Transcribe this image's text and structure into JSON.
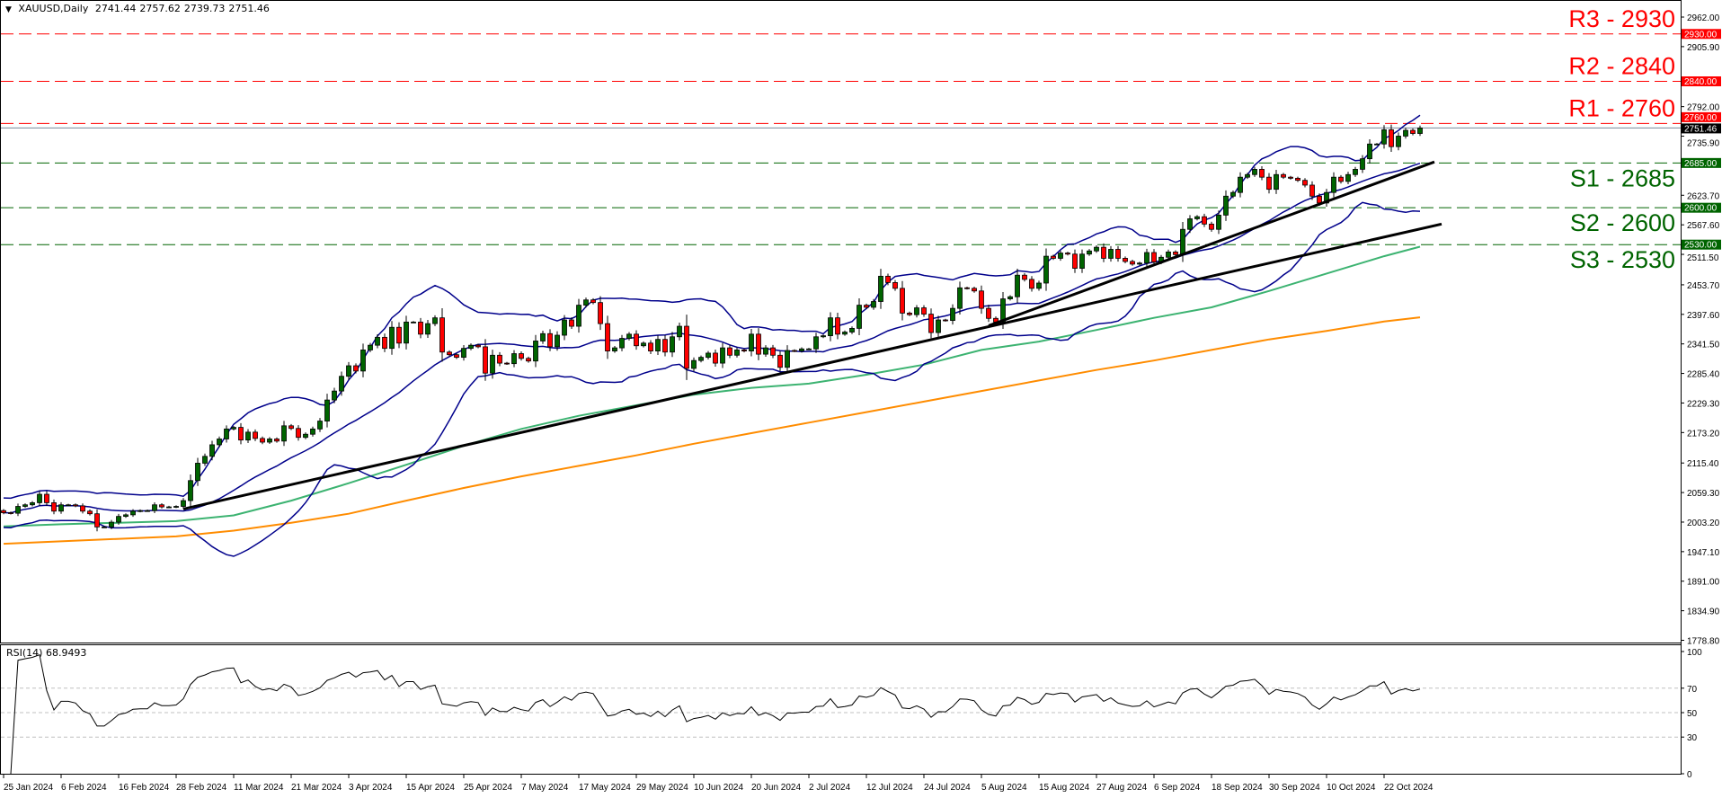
{
  "header": {
    "symbol": "XAUUSD,Daily",
    "open": "2741.44",
    "high": "2757.62",
    "low": "2739.73",
    "close": "2751.46",
    "menu_icon": "triangle-down-icon"
  },
  "rsi_panel": {
    "label": "RSI(14) 68.9493",
    "ticks": [
      "100",
      "70",
      "50",
      "30",
      "0"
    ]
  },
  "colors": {
    "up_candle": "#006400",
    "down_candle": "#ff0000",
    "bollinger": "#00008b",
    "ma_green": "#3cb371",
    "ma_orange": "#ff8c00",
    "trendline": "#000000",
    "resistance": "#ff0000",
    "support": "#006400",
    "price_line": "#778899"
  },
  "chart_data": {
    "type": "candlestick",
    "symbol": "XAUUSD",
    "timeframe": "Daily",
    "ylim": [
      1778.8,
      2962.0
    ],
    "y_ticks": [
      "2962.00",
      "2905.90",
      "2792.00",
      "2735.90",
      "2623.70",
      "2567.60",
      "2511.50",
      "2453.70",
      "2397.60",
      "2341.50",
      "2285.40",
      "2229.30",
      "2173.20",
      "2115.40",
      "2059.30",
      "2003.20",
      "1947.10",
      "1891.00",
      "1834.90",
      "1778.80"
    ],
    "x_ticks": [
      "25 Jan 2024",
      "6 Feb 2024",
      "16 Feb 2024",
      "28 Feb 2024",
      "11 Mar 2024",
      "21 Mar 2024",
      "3 Apr 2024",
      "15 Apr 2024",
      "25 Apr 2024",
      "7 May 2024",
      "17 May 2024",
      "29 May 2024",
      "10 Jun 2024",
      "20 Jun 2024",
      "2 Jul 2024",
      "12 Jul 2024",
      "24 Jul 2024",
      "5 Aug 2024",
      "15 Aug 2024",
      "27 Aug 2024",
      "6 Sep 2024",
      "18 Sep 2024",
      "30 Sep 2024",
      "10 Oct 2024",
      "22 Oct 2024"
    ],
    "close": [
      2021,
      2020,
      2033,
      2036,
      2040,
      2056,
      2040,
      2024,
      2036,
      2036,
      2034,
      2024,
      2019,
      1994,
      1994,
      2003,
      2014,
      2017,
      2024,
      2025,
      2025,
      2036,
      2032,
      2032,
      2033,
      2044,
      2082,
      2115,
      2128,
      2150,
      2161,
      2180,
      2183,
      2159,
      2174,
      2162,
      2155,
      2161,
      2157,
      2186,
      2181,
      2164,
      2170,
      2180,
      2195,
      2235,
      2252,
      2280,
      2300,
      2290,
      2330,
      2339,
      2354,
      2333,
      2373,
      2343,
      2383,
      2383,
      2360,
      2380,
      2391,
      2326,
      2321,
      2316,
      2333,
      2339,
      2336,
      2286,
      2320,
      2305,
      2304,
      2323,
      2314,
      2309,
      2347,
      2361,
      2336,
      2358,
      2387,
      2375,
      2415,
      2425,
      2420,
      2380,
      2328,
      2334,
      2352,
      2360,
      2338,
      2343,
      2328,
      2350,
      2326,
      2355,
      2375,
      2295,
      2310,
      2316,
      2324,
      2305,
      2334,
      2320,
      2330,
      2328,
      2360,
      2322,
      2334,
      2320,
      2297,
      2329,
      2328,
      2332,
      2332,
      2355,
      2357,
      2391,
      2360,
      2364,
      2371,
      2415,
      2411,
      2422,
      2470,
      2458,
      2447,
      2400,
      2397,
      2410,
      2398,
      2363,
      2387,
      2386,
      2409,
      2448,
      2447,
      2442,
      2409,
      2390,
      2383,
      2427,
      2431,
      2472,
      2464,
      2447,
      2457,
      2508,
      2504,
      2514,
      2512,
      2485,
      2512,
      2518,
      2525,
      2504,
      2521,
      2504,
      2498,
      2493,
      2495,
      2515,
      2497,
      2506,
      2516,
      2511,
      2559,
      2579,
      2583,
      2569,
      2559,
      2586,
      2622,
      2629,
      2658,
      2663,
      2673,
      2658,
      2635,
      2663,
      2658,
      2656,
      2652,
      2643,
      2622,
      2609,
      2629,
      2658,
      2650,
      2663,
      2673,
      2693,
      2721,
      2721,
      2748,
      2716,
      2736,
      2747,
      2741,
      2751.46
    ],
    "current_price": "2751.46",
    "levels": [
      {
        "label": "R3 - 2930",
        "price": 2930,
        "tag": "2930.00",
        "type": "resistance"
      },
      {
        "label": "R2 - 2840",
        "price": 2840,
        "tag": "2840.00",
        "type": "resistance"
      },
      {
        "label": "R1 - 2760",
        "price": 2760,
        "tag": "2760.00",
        "type": "resistance"
      },
      {
        "label": "S1 - 2685",
        "price": 2685,
        "tag": "2685.00",
        "type": "support"
      },
      {
        "label": "S2 - 2600",
        "price": 2600,
        "tag": "2600.00",
        "type": "support"
      },
      {
        "label": "S3 - 2530",
        "price": 2530,
        "tag": "2530.00",
        "type": "support"
      }
    ],
    "ma_green": [
      {
        "date": "25 Jan 2024",
        "value": 1995
      },
      {
        "date": "6 Feb 2024",
        "value": 1999
      },
      {
        "date": "16 Feb 2024",
        "value": 2002
      },
      {
        "date": "28 Feb 2024",
        "value": 2005
      },
      {
        "date": "11 Mar 2024",
        "value": 2016
      },
      {
        "date": "21 Mar 2024",
        "value": 2044
      },
      {
        "date": "3 Apr 2024",
        "value": 2077
      },
      {
        "date": "15 Apr 2024",
        "value": 2112
      },
      {
        "date": "25 Apr 2024",
        "value": 2148
      },
      {
        "date": "7 May 2024",
        "value": 2180
      },
      {
        "date": "17 May 2024",
        "value": 2205
      },
      {
        "date": "29 May 2024",
        "value": 2225
      },
      {
        "date": "10 Jun 2024",
        "value": 2245
      },
      {
        "date": "20 Jun 2024",
        "value": 2258
      },
      {
        "date": "2 Jul 2024",
        "value": 2266
      },
      {
        "date": "12 Jul 2024",
        "value": 2283
      },
      {
        "date": "24 Jul 2024",
        "value": 2302
      },
      {
        "date": "5 Aug 2024",
        "value": 2330
      },
      {
        "date": "15 Aug 2024",
        "value": 2346
      },
      {
        "date": "27 Aug 2024",
        "value": 2368
      },
      {
        "date": "6 Sep 2024",
        "value": 2391
      },
      {
        "date": "18 Sep 2024",
        "value": 2411
      },
      {
        "date": "30 Sep 2024",
        "value": 2442
      },
      {
        "date": "10 Oct 2024",
        "value": 2475
      },
      {
        "date": "22 Oct 2024",
        "value": 2508
      },
      {
        "date": "29 Oct 2024",
        "value": 2526
      }
    ],
    "ma_orange": [
      {
        "date": "25 Jan 2024",
        "value": 1962
      },
      {
        "date": "28 Feb 2024",
        "value": 1976
      },
      {
        "date": "11 Mar 2024",
        "value": 1987
      },
      {
        "date": "21 Mar 2024",
        "value": 2002
      },
      {
        "date": "3 Apr 2024",
        "value": 2019
      },
      {
        "date": "15 Apr 2024",
        "value": 2044
      },
      {
        "date": "25 Apr 2024",
        "value": 2068
      },
      {
        "date": "7 May 2024",
        "value": 2090
      },
      {
        "date": "17 May 2024",
        "value": 2110
      },
      {
        "date": "29 May 2024",
        "value": 2130
      },
      {
        "date": "10 Jun 2024",
        "value": 2152
      },
      {
        "date": "20 Jun 2024",
        "value": 2172
      },
      {
        "date": "2 Jul 2024",
        "value": 2192
      },
      {
        "date": "12 Jul 2024",
        "value": 2212
      },
      {
        "date": "24 Jul 2024",
        "value": 2232
      },
      {
        "date": "5 Aug 2024",
        "value": 2252
      },
      {
        "date": "15 Aug 2024",
        "value": 2272
      },
      {
        "date": "27 Aug 2024",
        "value": 2292
      },
      {
        "date": "6 Sep 2024",
        "value": 2310
      },
      {
        "date": "18 Sep 2024",
        "value": 2330
      },
      {
        "date": "30 Sep 2024",
        "value": 2350
      },
      {
        "date": "10 Oct 2024",
        "value": 2366
      },
      {
        "date": "22 Oct 2024",
        "value": 2384
      },
      {
        "date": "29 Oct 2024",
        "value": 2392
      }
    ],
    "trendlines": [
      {
        "start": {
          "date": "29 Feb 2024",
          "price": 2028
        },
        "end": {
          "date": "1 Nov 2024",
          "price": 2569
        }
      },
      {
        "start": {
          "date": "6 Aug 2024",
          "price": 2376
        },
        "end": {
          "date": "31 Oct 2024",
          "price": 2687
        }
      }
    ],
    "rsi": {
      "period": 14,
      "last": 68.9493,
      "ylim": [
        0,
        100
      ],
      "levels": [
        70,
        50,
        30
      ]
    }
  }
}
